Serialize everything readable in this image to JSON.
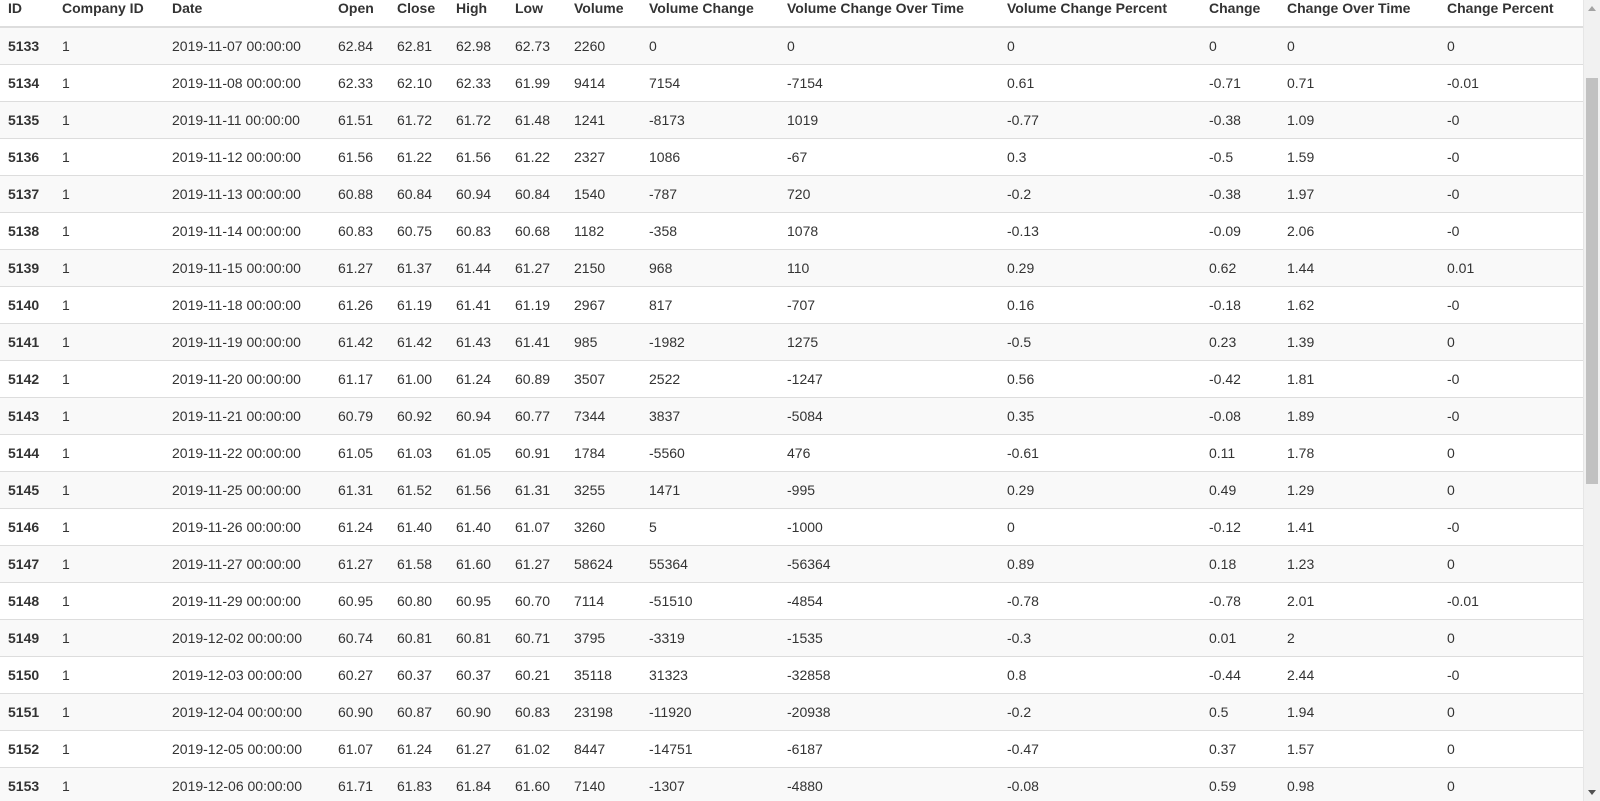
{
  "columns": [
    "ID",
    "Company ID",
    "Date",
    "Open",
    "Close",
    "High",
    "Low",
    "Volume",
    "Volume Change",
    "Volume Change Over Time",
    "Volume Change Percent",
    "Change",
    "Change Over Time",
    "Change Percent"
  ],
  "rows": [
    [
      "5133",
      "1",
      "2019-11-07 00:00:00",
      "62.84",
      "62.81",
      "62.98",
      "62.73",
      "2260",
      "0",
      "0",
      "0",
      "0",
      "0",
      "0"
    ],
    [
      "5134",
      "1",
      "2019-11-08 00:00:00",
      "62.33",
      "62.10",
      "62.33",
      "61.99",
      "9414",
      "7154",
      "-7154",
      "0.61",
      "-0.71",
      "0.71",
      "-0.01"
    ],
    [
      "5135",
      "1",
      "2019-11-11 00:00:00",
      "61.51",
      "61.72",
      "61.72",
      "61.48",
      "1241",
      "-8173",
      "1019",
      "-0.77",
      "-0.38",
      "1.09",
      "-0"
    ],
    [
      "5136",
      "1",
      "2019-11-12 00:00:00",
      "61.56",
      "61.22",
      "61.56",
      "61.22",
      "2327",
      "1086",
      "-67",
      "0.3",
      "-0.5",
      "1.59",
      "-0"
    ],
    [
      "5137",
      "1",
      "2019-11-13 00:00:00",
      "60.88",
      "60.84",
      "60.94",
      "60.84",
      "1540",
      "-787",
      "720",
      "-0.2",
      "-0.38",
      "1.97",
      "-0"
    ],
    [
      "5138",
      "1",
      "2019-11-14 00:00:00",
      "60.83",
      "60.75",
      "60.83",
      "60.68",
      "1182",
      "-358",
      "1078",
      "-0.13",
      "-0.09",
      "2.06",
      "-0"
    ],
    [
      "5139",
      "1",
      "2019-11-15 00:00:00",
      "61.27",
      "61.37",
      "61.44",
      "61.27",
      "2150",
      "968",
      "110",
      "0.29",
      "0.62",
      "1.44",
      "0.01"
    ],
    [
      "5140",
      "1",
      "2019-11-18 00:00:00",
      "61.26",
      "61.19",
      "61.41",
      "61.19",
      "2967",
      "817",
      "-707",
      "0.16",
      "-0.18",
      "1.62",
      "-0"
    ],
    [
      "5141",
      "1",
      "2019-11-19 00:00:00",
      "61.42",
      "61.42",
      "61.43",
      "61.41",
      "985",
      "-1982",
      "1275",
      "-0.5",
      "0.23",
      "1.39",
      "0"
    ],
    [
      "5142",
      "1",
      "2019-11-20 00:00:00",
      "61.17",
      "61.00",
      "61.24",
      "60.89",
      "3507",
      "2522",
      "-1247",
      "0.56",
      "-0.42",
      "1.81",
      "-0"
    ],
    [
      "5143",
      "1",
      "2019-11-21 00:00:00",
      "60.79",
      "60.92",
      "60.94",
      "60.77",
      "7344",
      "3837",
      "-5084",
      "0.35",
      "-0.08",
      "1.89",
      "-0"
    ],
    [
      "5144",
      "1",
      "2019-11-22 00:00:00",
      "61.05",
      "61.03",
      "61.05",
      "60.91",
      "1784",
      "-5560",
      "476",
      "-0.61",
      "0.11",
      "1.78",
      "0"
    ],
    [
      "5145",
      "1",
      "2019-11-25 00:00:00",
      "61.31",
      "61.52",
      "61.56",
      "61.31",
      "3255",
      "1471",
      "-995",
      "0.29",
      "0.49",
      "1.29",
      "0"
    ],
    [
      "5146",
      "1",
      "2019-11-26 00:00:00",
      "61.24",
      "61.40",
      "61.40",
      "61.07",
      "3260",
      "5",
      "-1000",
      "0",
      "-0.12",
      "1.41",
      "-0"
    ],
    [
      "5147",
      "1",
      "2019-11-27 00:00:00",
      "61.27",
      "61.58",
      "61.60",
      "61.27",
      "58624",
      "55364",
      "-56364",
      "0.89",
      "0.18",
      "1.23",
      "0"
    ],
    [
      "5148",
      "1",
      "2019-11-29 00:00:00",
      "60.95",
      "60.80",
      "60.95",
      "60.70",
      "7114",
      "-51510",
      "-4854",
      "-0.78",
      "-0.78",
      "2.01",
      "-0.01"
    ],
    [
      "5149",
      "1",
      "2019-12-02 00:00:00",
      "60.74",
      "60.81",
      "60.81",
      "60.71",
      "3795",
      "-3319",
      "-1535",
      "-0.3",
      "0.01",
      "2",
      "0"
    ],
    [
      "5150",
      "1",
      "2019-12-03 00:00:00",
      "60.27",
      "60.37",
      "60.37",
      "60.21",
      "35118",
      "31323",
      "-32858",
      "0.8",
      "-0.44",
      "2.44",
      "-0"
    ],
    [
      "5151",
      "1",
      "2019-12-04 00:00:00",
      "60.90",
      "60.87",
      "60.90",
      "60.83",
      "23198",
      "-11920",
      "-20938",
      "-0.2",
      "0.5",
      "1.94",
      "0"
    ],
    [
      "5152",
      "1",
      "2019-12-05 00:00:00",
      "61.07",
      "61.24",
      "61.27",
      "61.02",
      "8447",
      "-14751",
      "-6187",
      "-0.47",
      "0.37",
      "1.57",
      "0"
    ],
    [
      "5153",
      "1",
      "2019-12-06 00:00:00",
      "61.71",
      "61.83",
      "61.84",
      "61.60",
      "7140",
      "-1307",
      "-4880",
      "-0.08",
      "0.59",
      "0.98",
      "0"
    ]
  ],
  "scrollbar": {
    "up_icon": "arrow-up-icon",
    "down_icon": "arrow-down-icon"
  }
}
